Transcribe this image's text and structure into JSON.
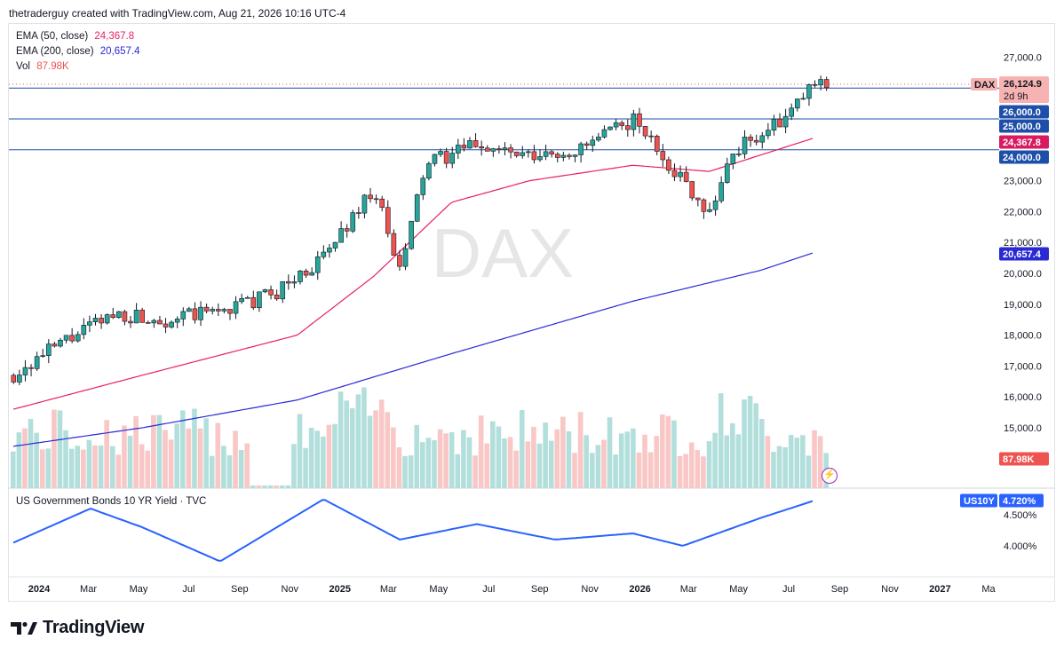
{
  "header": {
    "text": "thetraderguy created with TradingView.com, Aug 21, 2026 10:16 UTC-4"
  },
  "legend": {
    "ema50_label": "EMA (50, close)",
    "ema50_value": "24,367.8",
    "ema200_label": "EMA (200, close)",
    "ema200_value": "20,657.4",
    "vol_label": "Vol",
    "vol_value": "87.98K"
  },
  "watermark": "DAX",
  "price_axis": {
    "ticks": [
      "27,000.0",
      "23,000.0",
      "22,000.0",
      "21,000.0",
      "20,000.0",
      "19,000.0",
      "18,000.0",
      "17,000.0",
      "16,000.0",
      "15,000.0"
    ],
    "tick_values": [
      27000,
      23000,
      22000,
      21000,
      20000,
      19000,
      18000,
      17000,
      16000,
      15000
    ]
  },
  "labels": {
    "dax_tag": "DAX",
    "dax_price": "26,124.9",
    "dax_countdown": "2d 9h",
    "level_26000": "26,000.0",
    "level_25000": "25,000.0",
    "level_24000": "24,000.0",
    "ema50_tag": "24,367.8",
    "ema200_tag": "20,657.4",
    "vol_tag": "87.98K"
  },
  "lower_pane": {
    "title": "US Government Bonds 10 YR Yield · TVC",
    "tag": "US10Y",
    "tag_value": "4.720%",
    "ticks": [
      "4.500%",
      "4.000%"
    ],
    "tick_values": [
      4.5,
      4.0
    ]
  },
  "time_axis": [
    "2024",
    "Mar",
    "May",
    "Jul",
    "Sep",
    "Nov",
    "2025",
    "Mar",
    "May",
    "Jul",
    "Sep",
    "Nov",
    "2026",
    "Mar",
    "May",
    "Jul",
    "Sep",
    "Nov",
    "2027",
    "Ma"
  ],
  "footer": {
    "brand": "TradingView"
  },
  "colors": {
    "up": "#26a69a",
    "down": "#ef5350",
    "ema50": "#e91e63",
    "ema200": "#2929d6",
    "level": "#1e4fa8",
    "yield": "#2962ff",
    "vol_up": "#b2dfdb",
    "vol_down": "#f8c7c6"
  },
  "chart_data": {
    "type": "line",
    "title": "DAX",
    "series": [
      {
        "name": "DAX",
        "x": [
          "2024-01",
          "2024-03",
          "2024-05",
          "2024-07",
          "2024-09",
          "2024-11",
          "2025-01",
          "2025-03",
          "2025-04",
          "2025-05",
          "2025-07",
          "2025-09",
          "2025-11",
          "2026-01",
          "2026-03",
          "2026-04",
          "2026-05",
          "2026-07",
          "2026-08"
        ],
        "values": [
          16700,
          17800,
          18700,
          18500,
          18800,
          19300,
          20500,
          22800,
          20000,
          23500,
          24200,
          23700,
          24000,
          25000,
          23000,
          22000,
          24000,
          25000,
          26124.9
        ]
      },
      {
        "name": "EMA (50, close)",
        "x": [
          "2024-01",
          "2024-06",
          "2024-12",
          "2025-03",
          "2025-06",
          "2025-09",
          "2026-01",
          "2026-04",
          "2026-08"
        ],
        "values": [
          15600,
          16700,
          18000,
          19900,
          22300,
          23000,
          23500,
          23300,
          24367.8
        ]
      },
      {
        "name": "EMA (200, close)",
        "x": [
          "2024-01",
          "2024-06",
          "2024-12",
          "2025-06",
          "2026-01",
          "2026-06",
          "2026-08"
        ],
        "values": [
          14400,
          15000,
          15900,
          17400,
          19100,
          20100,
          20657.4
        ]
      },
      {
        "name": "US Government Bonds 10 YR Yield · TVC",
        "x": [
          "2024-01",
          "2024-04",
          "2024-06",
          "2024-09",
          "2025-01",
          "2025-04",
          "2025-07",
          "2025-10",
          "2026-01",
          "2026-03",
          "2026-06",
          "2026-08"
        ],
        "values": [
          4.05,
          4.6,
          4.3,
          3.75,
          4.75,
          4.1,
          4.35,
          4.1,
          4.2,
          4.0,
          4.45,
          4.72
        ]
      }
    ],
    "ylim": [
      14000,
      27500
    ],
    "levels": [
      26000,
      25000,
      24000
    ],
    "volume_last": "87.98K",
    "legend": "top-left"
  }
}
